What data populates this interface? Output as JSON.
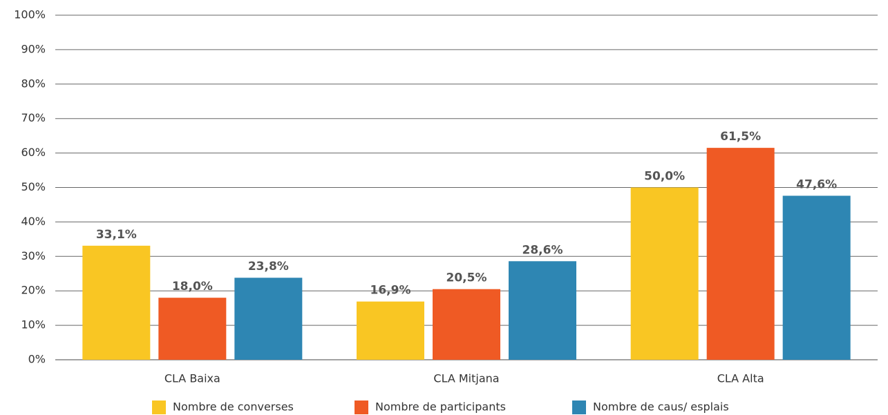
{
  "chart_data": {
    "type": "bar",
    "categories": [
      "CLA Baixa",
      "CLA Mitjana",
      "CLA Alta"
    ],
    "series": [
      {
        "name": "Nombre de converses",
        "color": "#f9c623",
        "values": [
          33.1,
          16.9,
          50.0
        ],
        "value_labels": [
          "33,1%",
          "16,9%",
          "50,0%"
        ]
      },
      {
        "name": "Nombre de participants",
        "color": "#ef5a24",
        "values": [
          18.0,
          20.5,
          61.5
        ],
        "value_labels": [
          "18,0%",
          "20,5%",
          "61,5%"
        ]
      },
      {
        "name": "Nombre de caus/ esplais",
        "color": "#2e86b3",
        "values": [
          23.8,
          28.6,
          47.6
        ],
        "value_labels": [
          "23,8%",
          "28,6%",
          "47,6%"
        ]
      }
    ],
    "ylim": [
      0,
      100
    ],
    "yticks": [
      {
        "value": 0,
        "label": "0%"
      },
      {
        "value": 10,
        "label": "10%"
      },
      {
        "value": 20,
        "label": "20%"
      },
      {
        "value": 30,
        "label": "30%"
      },
      {
        "value": 40,
        "label": "40%"
      },
      {
        "value": 50,
        "label": "50%"
      },
      {
        "value": 60,
        "label": "60%"
      },
      {
        "value": 70,
        "label": "70%"
      },
      {
        "value": 80,
        "label": "80%"
      },
      {
        "value": 90,
        "label": "90%"
      },
      {
        "value": 100,
        "label": "100%"
      }
    ],
    "grid": true,
    "legend": "bottom"
  }
}
